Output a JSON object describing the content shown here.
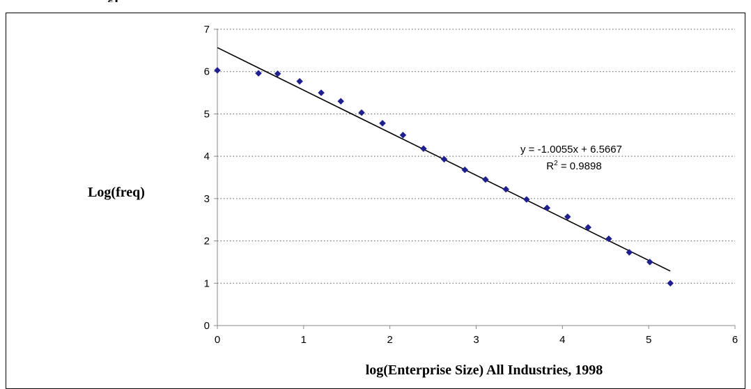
{
  "chart_data": {
    "type": "scatter",
    "top_fragment": "gr",
    "xlabel": "log(Enterprise Size) All Industries, 1998",
    "ylabel": "Log(freq)",
    "xlim": [
      0,
      6
    ],
    "ylim": [
      0,
      7
    ],
    "x_ticks": [
      0,
      1,
      2,
      3,
      4,
      5,
      6
    ],
    "y_ticks": [
      0,
      1,
      2,
      3,
      4,
      5,
      6,
      7
    ],
    "grid": "horizontal-dotted",
    "marker_color": "#1f1f8f",
    "trendline": {
      "slope": -1.0055,
      "intercept": 6.5667,
      "x_range": [
        0,
        5.25
      ]
    },
    "equation_label": "y = -1.0055x + 6.5667",
    "r2_prefix": "R",
    "r2_sup": "2",
    "r2_value": " = 0.9898",
    "x": [
      0,
      0.477,
      0.699,
      0.954,
      1.204,
      1.431,
      1.672,
      1.914,
      2.152,
      2.39,
      2.629,
      2.869,
      3.108,
      3.345,
      3.584,
      3.822,
      4.06,
      4.298,
      4.537,
      4.775,
      5.013,
      5.251
    ],
    "y": [
      6.03,
      5.96,
      5.95,
      5.77,
      5.5,
      5.3,
      5.03,
      4.78,
      4.5,
      4.18,
      3.93,
      3.68,
      3.45,
      3.22,
      2.98,
      2.78,
      2.57,
      2.32,
      2.05,
      1.73,
      1.5,
      1.0
    ]
  }
}
